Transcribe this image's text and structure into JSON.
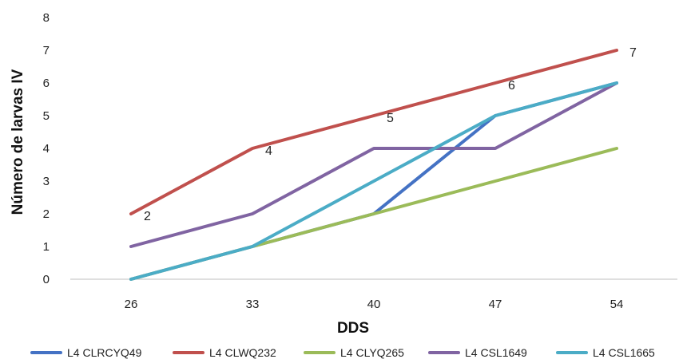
{
  "chart_data": {
    "type": "line",
    "title": "",
    "xlabel": "DDS",
    "ylabel": "Número de larvas IV",
    "categories": [
      "26",
      "33",
      "40",
      "47",
      "54"
    ],
    "ylim": [
      0,
      8
    ],
    "yticks": [
      0,
      1,
      2,
      3,
      4,
      5,
      6,
      7,
      8
    ],
    "grid": false,
    "legend_position": "bottom",
    "series": [
      {
        "name": "L4 CLRCYQ49",
        "color": "#4472C4",
        "values": [
          0,
          1,
          2,
          5,
          6
        ]
      },
      {
        "name": "L4 CLWQ232",
        "color": "#C0504D",
        "values": [
          2,
          4,
          5,
          6,
          7
        ],
        "data_labels": true
      },
      {
        "name": "L4 CLYQ265",
        "color": "#9BBB59",
        "values": [
          0,
          1,
          2,
          3,
          4
        ]
      },
      {
        "name": "L4 CSL1649",
        "color": "#8064A2",
        "values": [
          1,
          2,
          4,
          4,
          6
        ]
      },
      {
        "name": "L4 CSL1665",
        "color": "#4BACC6",
        "values": [
          0,
          1,
          3,
          5,
          6
        ]
      }
    ]
  }
}
